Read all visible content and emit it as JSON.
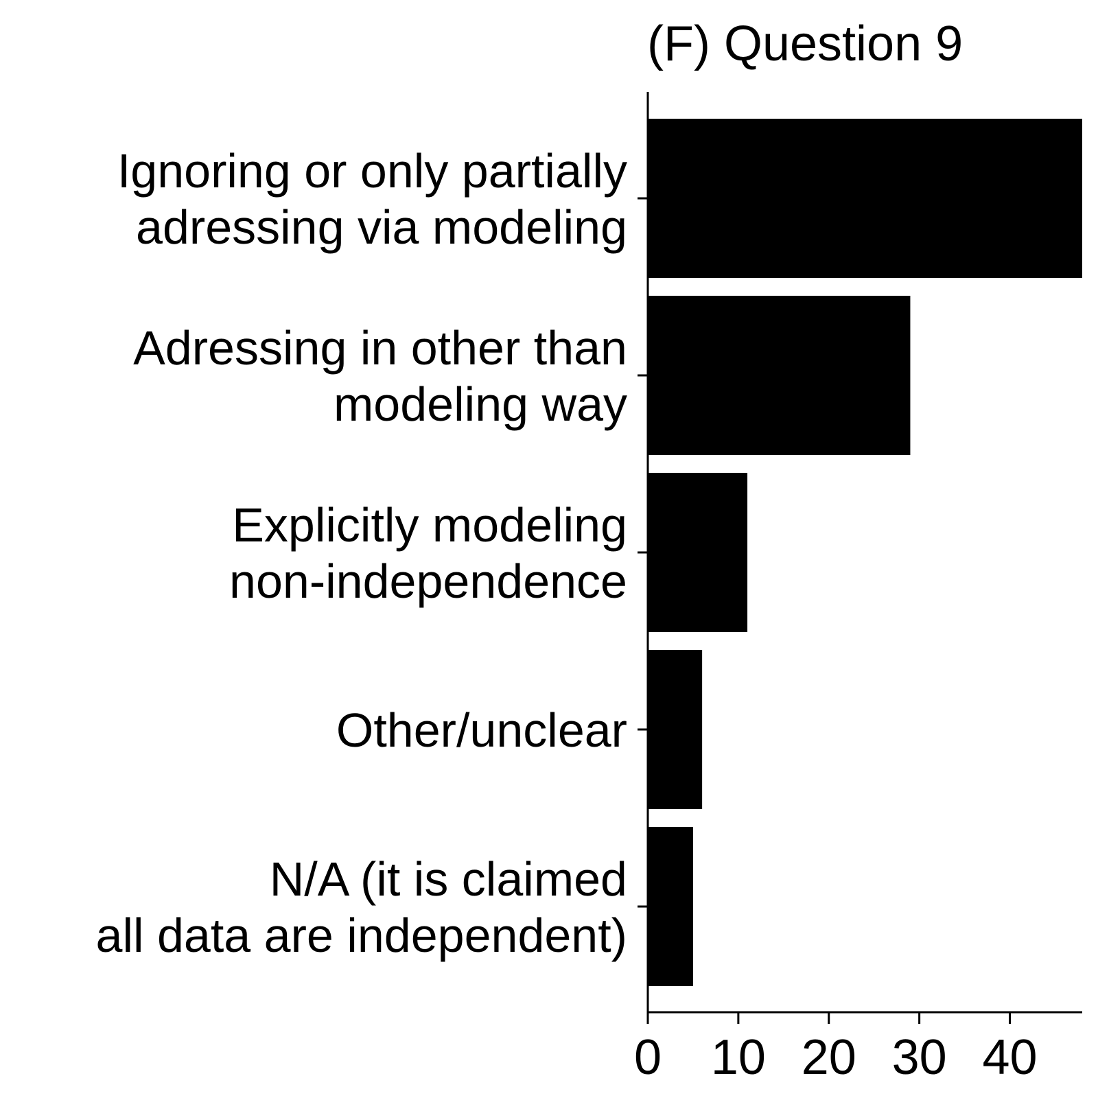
{
  "chart_data": {
    "type": "bar",
    "orientation": "horizontal",
    "title": "(F) Question 9",
    "categories": [
      [
        "Ignoring or only partially",
        "adressing via modeling"
      ],
      [
        "Adressing in other than",
        "modeling way"
      ],
      [
        "Explicitly modeling",
        "non-independence"
      ],
      [
        "Other/unclear"
      ],
      [
        "N/A (it is claimed",
        "all data are independent)"
      ]
    ],
    "values": [
      48,
      29,
      11,
      6,
      5
    ],
    "xlim": [
      0,
      48
    ],
    "xticks": [
      0,
      10,
      20,
      30,
      40
    ],
    "xlabel": "",
    "ylabel": "",
    "bar_color": "#000000",
    "grid": false
  }
}
